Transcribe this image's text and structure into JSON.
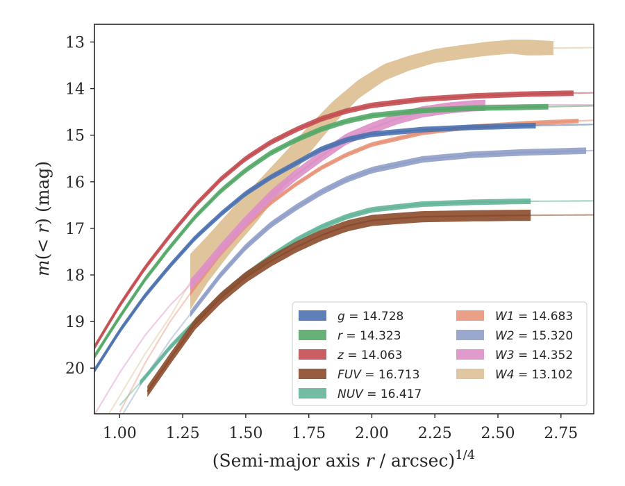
{
  "chart_data": {
    "type": "line",
    "xlabel": "(Semi-major axis r / arcsec)1/4",
    "xlabel_parts": {
      "main": "(Semi-major axis ",
      "var": "r",
      "rest": " / arcsec)",
      "sup": "1/4"
    },
    "ylabel": "m(< r) (mag)",
    "ylabel_parts": {
      "var": "m",
      "open": "(",
      "lt": "< ",
      "var2": "r",
      "close": ") (mag)"
    },
    "xlim": [
      0.9,
      2.88
    ],
    "ylim": [
      20.98,
      12.62
    ],
    "y_inverted": true,
    "x_ticks": [
      "1.00",
      "1.25",
      "1.50",
      "1.75",
      "2.00",
      "2.25",
      "2.50",
      "2.75"
    ],
    "x_tick_values": [
      1.0,
      1.25,
      1.5,
      1.75,
      2.0,
      2.25,
      2.5,
      2.75
    ],
    "y_ticks": [
      "13",
      "14",
      "15",
      "16",
      "17",
      "18",
      "19",
      "20"
    ],
    "y_tick_values": [
      13,
      14,
      15,
      16,
      17,
      18,
      19,
      20
    ],
    "grid": false,
    "legend_position": "lower-right",
    "series": [
      {
        "name": "g = 14.728",
        "label_var": "g",
        "label_val": " = 14.728",
        "color": "#4c72b0",
        "band": 0.06,
        "fade_before": null,
        "fade_after": 2.65,
        "x": [
          0.9,
          1.0,
          1.1,
          1.2,
          1.3,
          1.4,
          1.5,
          1.6,
          1.7,
          1.8,
          1.9,
          2.0,
          2.2,
          2.4,
          2.6,
          2.88
        ],
        "y": [
          20.05,
          19.2,
          18.45,
          17.8,
          17.2,
          16.7,
          16.25,
          15.9,
          15.6,
          15.3,
          15.1,
          14.98,
          14.88,
          14.83,
          14.8,
          14.77
        ]
      },
      {
        "name": "r = 14.323",
        "label_var": "r",
        "label_val": " = 14.323",
        "color": "#55a868",
        "band": 0.06,
        "fade_before": null,
        "fade_after": 2.7,
        "x": [
          0.9,
          1.0,
          1.1,
          1.2,
          1.3,
          1.4,
          1.5,
          1.6,
          1.7,
          1.8,
          1.9,
          2.0,
          2.2,
          2.4,
          2.6,
          2.88
        ],
        "y": [
          19.75,
          18.9,
          18.1,
          17.4,
          16.75,
          16.2,
          15.75,
          15.38,
          15.1,
          14.87,
          14.7,
          14.58,
          14.47,
          14.42,
          14.4,
          14.37
        ]
      },
      {
        "name": "z = 14.063",
        "label_var": "z",
        "label_val": " = 14.063",
        "color": "#c44e52",
        "band": 0.06,
        "fade_before": null,
        "fade_after": 2.8,
        "x": [
          0.9,
          1.0,
          1.1,
          1.2,
          1.3,
          1.4,
          1.5,
          1.6,
          1.7,
          1.8,
          1.9,
          2.0,
          2.2,
          2.4,
          2.6,
          2.88
        ],
        "y": [
          19.55,
          18.65,
          17.85,
          17.15,
          16.5,
          15.95,
          15.5,
          15.15,
          14.88,
          14.65,
          14.48,
          14.36,
          14.23,
          14.16,
          14.12,
          14.09
        ]
      },
      {
        "name": "FUV = 16.713",
        "label_var": "FUV",
        "label_val": " = 16.713",
        "color": "#8c4b2c",
        "band": 0.12,
        "fade_before": null,
        "fade_after": 2.63,
        "x": [
          1.11,
          1.2,
          1.3,
          1.4,
          1.5,
          1.6,
          1.7,
          1.8,
          1.9,
          2.0,
          2.2,
          2.4,
          2.6,
          2.88
        ],
        "y": [
          20.5,
          19.8,
          19.05,
          18.5,
          18.05,
          17.7,
          17.4,
          17.15,
          16.95,
          16.83,
          16.75,
          16.73,
          16.72,
          16.71
        ]
      },
      {
        "name": "NUV = 16.417",
        "label_var": "NUV",
        "label_val": " = 16.417",
        "color": "#64b59a",
        "band": 0.06,
        "fade_before": 1.08,
        "fade_after": 2.63,
        "x": [
          1.0,
          1.1,
          1.2,
          1.3,
          1.4,
          1.5,
          1.6,
          1.7,
          1.8,
          1.9,
          2.0,
          2.2,
          2.4,
          2.6,
          2.88
        ],
        "y": [
          20.8,
          20.2,
          19.55,
          19.0,
          18.45,
          18.0,
          17.6,
          17.25,
          16.97,
          16.75,
          16.6,
          16.48,
          16.44,
          16.42,
          16.41
        ]
      },
      {
        "name": "W1 = 14.683",
        "label_var": "W1",
        "label_val": " = 14.683",
        "color": "#e8957a",
        "band": 0.05,
        "fade_before": 1.28,
        "fade_after": 2.82,
        "x": [
          1.0,
          1.1,
          1.2,
          1.3,
          1.4,
          1.5,
          1.6,
          1.7,
          1.8,
          1.9,
          2.0,
          2.2,
          2.4,
          2.6,
          2.88
        ],
        "y": [
          20.95,
          19.9,
          19.0,
          18.25,
          17.55,
          16.95,
          16.45,
          16.05,
          15.7,
          15.42,
          15.2,
          14.95,
          14.82,
          14.75,
          14.68
        ]
      },
      {
        "name": "W2 = 15.320",
        "label_var": "W2",
        "label_val": " = 15.320",
        "color": "#8f9fc8",
        "band": 0.07,
        "fade_before": 1.28,
        "fade_after": 2.85,
        "x": [
          1.0,
          1.1,
          1.2,
          1.3,
          1.4,
          1.5,
          1.6,
          1.7,
          1.8,
          1.9,
          2.0,
          2.2,
          2.4,
          2.6,
          2.88
        ],
        "y": [
          21.1,
          20.2,
          19.4,
          18.7,
          18.0,
          17.4,
          16.92,
          16.55,
          16.22,
          15.95,
          15.75,
          15.52,
          15.42,
          15.37,
          15.33
        ]
      },
      {
        "name": "W3 = 14.352",
        "label_var": "W3",
        "label_val": " = 14.352",
        "color": "#dd8fc6",
        "band": 0.12,
        "fade_before": 1.28,
        "fade_after": 2.45,
        "x": [
          0.9,
          1.0,
          1.1,
          1.2,
          1.3,
          1.4,
          1.5,
          1.6,
          1.7,
          1.8,
          1.9,
          2.0,
          2.1,
          2.2,
          2.3,
          2.4,
          2.45,
          2.6,
          2.88
        ],
        "y": [
          21.0,
          20.1,
          19.3,
          18.65,
          18.1,
          17.45,
          16.85,
          16.3,
          15.85,
          15.45,
          15.08,
          14.85,
          14.65,
          14.5,
          14.42,
          14.37,
          14.36,
          14.35,
          14.35
        ]
      },
      {
        "name": "W4 = 13.102",
        "label_var": "W4",
        "label_val": " = 13.102",
        "color": "#ddc197",
        "band": 0.0,
        "fade_before": 1.28,
        "fade_after": 2.72,
        "x": [
          0.9,
          1.0,
          1.1,
          1.2,
          1.28,
          1.35,
          1.45,
          1.55,
          1.65,
          1.75,
          1.85,
          1.95,
          2.05,
          2.15,
          2.25,
          2.35,
          2.45,
          2.55,
          2.62,
          2.72,
          2.88
        ],
        "y": [
          21.5,
          20.6,
          19.7,
          18.9,
          18.15,
          17.65,
          17.0,
          16.4,
          15.75,
          15.1,
          14.5,
          14.0,
          13.65,
          13.45,
          13.3,
          13.22,
          13.15,
          13.1,
          13.12,
          13.13,
          13.12
        ],
        "band_y": [
          0.5,
          0.5,
          0.5,
          0.5,
          0.6,
          0.5,
          0.45,
          0.42,
          0.35,
          0.3,
          0.25,
          0.2,
          0.18,
          0.16,
          0.15,
          0.15,
          0.15,
          0.15,
          0.17,
          0.15,
          0.0
        ]
      }
    ]
  }
}
